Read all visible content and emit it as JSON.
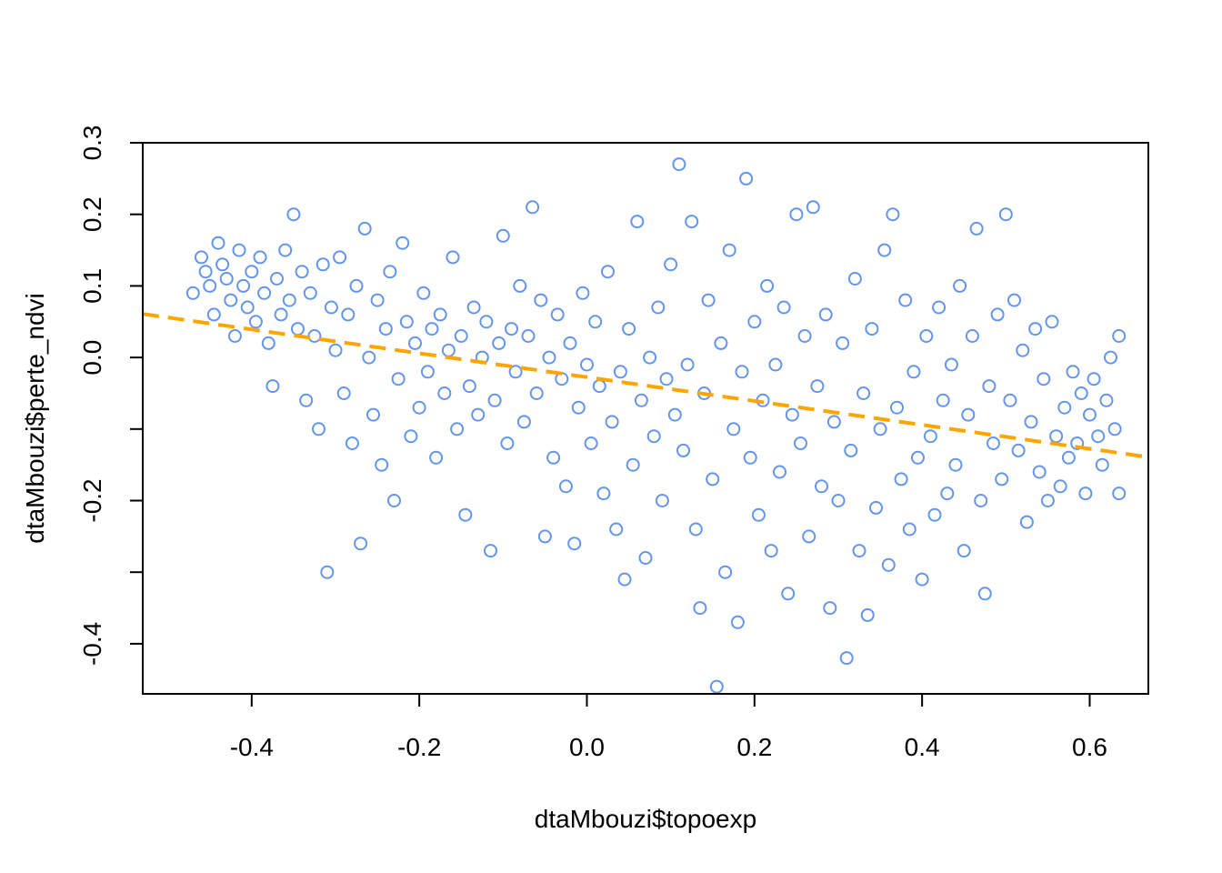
{
  "chart_data": {
    "type": "scatter",
    "title": "",
    "xlabel": "dtaMbouzi$topoexp",
    "ylabel": "dtaMbouzi$perte_ndvi",
    "xlim": [
      -0.53,
      0.67
    ],
    "ylim": [
      -0.47,
      0.3
    ],
    "x_ticks": [
      -0.4,
      -0.2,
      0.0,
      0.2,
      0.4,
      0.6
    ],
    "x_tick_labels": [
      "-0.4",
      "-0.2",
      "0.0",
      "0.2",
      "0.4",
      "0.6"
    ],
    "y_ticks": [
      -0.4,
      -0.3,
      -0.2,
      -0.1,
      0.0,
      0.1,
      0.2,
      0.3
    ],
    "y_tick_labels": [
      "-0.4",
      "",
      "-0.2",
      "",
      "0.0",
      "0.1",
      "0.2",
      "0.3"
    ],
    "grid": false,
    "legend": "none",
    "point_color": "#6495ED",
    "line_color": "#FFA500",
    "regression_line": {
      "style": "dashed",
      "intercept": -0.0275,
      "slope": -0.1667
    },
    "series": [
      {
        "points": [
          [
            -0.47,
            0.09
          ],
          [
            -0.46,
            0.14
          ],
          [
            -0.455,
            0.12
          ],
          [
            -0.45,
            0.1
          ],
          [
            -0.445,
            0.06
          ],
          [
            -0.44,
            0.16
          ],
          [
            -0.435,
            0.13
          ],
          [
            -0.43,
            0.11
          ],
          [
            -0.425,
            0.08
          ],
          [
            -0.42,
            0.03
          ],
          [
            -0.415,
            0.15
          ],
          [
            -0.41,
            0.1
          ],
          [
            -0.405,
            0.07
          ],
          [
            -0.4,
            0.12
          ],
          [
            -0.395,
            0.05
          ],
          [
            -0.39,
            0.14
          ],
          [
            -0.385,
            0.09
          ],
          [
            -0.38,
            0.02
          ],
          [
            -0.375,
            -0.04
          ],
          [
            -0.37,
            0.11
          ],
          [
            -0.365,
            0.06
          ],
          [
            -0.36,
            0.15
          ],
          [
            -0.355,
            0.08
          ],
          [
            -0.35,
            0.2
          ],
          [
            -0.345,
            0.04
          ],
          [
            -0.34,
            0.12
          ],
          [
            -0.335,
            -0.06
          ],
          [
            -0.33,
            0.09
          ],
          [
            -0.325,
            0.03
          ],
          [
            -0.32,
            -0.1
          ],
          [
            -0.315,
            0.13
          ],
          [
            -0.31,
            -0.3
          ],
          [
            -0.305,
            0.07
          ],
          [
            -0.3,
            0.01
          ],
          [
            -0.295,
            0.14
          ],
          [
            -0.29,
            -0.05
          ],
          [
            -0.285,
            0.06
          ],
          [
            -0.28,
            -0.12
          ],
          [
            -0.275,
            0.1
          ],
          [
            -0.27,
            -0.26
          ],
          [
            -0.265,
            0.18
          ],
          [
            -0.26,
            0.0
          ],
          [
            -0.255,
            -0.08
          ],
          [
            -0.25,
            0.08
          ],
          [
            -0.245,
            -0.15
          ],
          [
            -0.24,
            0.04
          ],
          [
            -0.235,
            0.12
          ],
          [
            -0.23,
            -0.2
          ],
          [
            -0.225,
            -0.03
          ],
          [
            -0.22,
            0.16
          ],
          [
            -0.215,
            0.05
          ],
          [
            -0.21,
            -0.11
          ],
          [
            -0.205,
            0.02
          ],
          [
            -0.2,
            -0.07
          ],
          [
            -0.195,
            0.09
          ],
          [
            -0.19,
            -0.02
          ],
          [
            -0.185,
            0.04
          ],
          [
            -0.18,
            -0.14
          ],
          [
            -0.175,
            0.06
          ],
          [
            -0.17,
            -0.05
          ],
          [
            -0.165,
            0.01
          ],
          [
            -0.16,
            0.14
          ],
          [
            -0.155,
            -0.1
          ],
          [
            -0.15,
            0.03
          ],
          [
            -0.145,
            -0.22
          ],
          [
            -0.14,
            -0.04
          ],
          [
            -0.135,
            0.07
          ],
          [
            -0.13,
            -0.08
          ],
          [
            -0.125,
            0.0
          ],
          [
            -0.12,
            0.05
          ],
          [
            -0.115,
            -0.27
          ],
          [
            -0.11,
            -0.06
          ],
          [
            -0.105,
            0.02
          ],
          [
            -0.1,
            0.17
          ],
          [
            -0.095,
            -0.12
          ],
          [
            -0.09,
            0.04
          ],
          [
            -0.085,
            -0.02
          ],
          [
            -0.08,
            0.1
          ],
          [
            -0.075,
            -0.09
          ],
          [
            -0.07,
            0.03
          ],
          [
            -0.065,
            0.21
          ],
          [
            -0.06,
            -0.05
          ],
          [
            -0.055,
            0.08
          ],
          [
            -0.05,
            -0.25
          ],
          [
            -0.045,
            0.0
          ],
          [
            -0.04,
            -0.14
          ],
          [
            -0.035,
            0.06
          ],
          [
            -0.03,
            -0.03
          ],
          [
            -0.025,
            -0.18
          ],
          [
            -0.02,
            0.02
          ],
          [
            -0.015,
            -0.26
          ],
          [
            -0.01,
            -0.07
          ],
          [
            -0.005,
            0.09
          ],
          [
            0.0,
            -0.01
          ],
          [
            0.005,
            -0.12
          ],
          [
            0.01,
            0.05
          ],
          [
            0.015,
            -0.04
          ],
          [
            0.02,
            -0.19
          ],
          [
            0.025,
            0.12
          ],
          [
            0.03,
            -0.09
          ],
          [
            0.035,
            -0.24
          ],
          [
            0.04,
            -0.02
          ],
          [
            0.045,
            -0.31
          ],
          [
            0.05,
            0.04
          ],
          [
            0.055,
            -0.15
          ],
          [
            0.06,
            0.19
          ],
          [
            0.065,
            -0.06
          ],
          [
            0.07,
            -0.28
          ],
          [
            0.075,
            0.0
          ],
          [
            0.08,
            -0.11
          ],
          [
            0.085,
            0.07
          ],
          [
            0.09,
            -0.2
          ],
          [
            0.095,
            -0.03
          ],
          [
            0.1,
            0.13
          ],
          [
            0.105,
            -0.08
          ],
          [
            0.11,
            0.27
          ],
          [
            0.115,
            -0.13
          ],
          [
            0.12,
            -0.01
          ],
          [
            0.125,
            0.19
          ],
          [
            0.13,
            -0.24
          ],
          [
            0.135,
            -0.35
          ],
          [
            0.14,
            -0.05
          ],
          [
            0.145,
            0.08
          ],
          [
            0.15,
            -0.17
          ],
          [
            0.155,
            -0.46
          ],
          [
            0.16,
            0.02
          ],
          [
            0.165,
            -0.3
          ],
          [
            0.17,
            0.15
          ],
          [
            0.175,
            -0.1
          ],
          [
            0.18,
            -0.37
          ],
          [
            0.185,
            -0.02
          ],
          [
            0.19,
            0.25
          ],
          [
            0.195,
            -0.14
          ],
          [
            0.2,
            0.05
          ],
          [
            0.205,
            -0.22
          ],
          [
            0.21,
            -0.06
          ],
          [
            0.215,
            0.1
          ],
          [
            0.22,
            -0.27
          ],
          [
            0.225,
            -0.01
          ],
          [
            0.23,
            -0.16
          ],
          [
            0.235,
            0.07
          ],
          [
            0.24,
            -0.33
          ],
          [
            0.245,
            -0.08
          ],
          [
            0.25,
            0.2
          ],
          [
            0.255,
            -0.12
          ],
          [
            0.26,
            0.03
          ],
          [
            0.265,
            -0.25
          ],
          [
            0.27,
            0.21
          ],
          [
            0.275,
            -0.04
          ],
          [
            0.28,
            -0.18
          ],
          [
            0.285,
            0.06
          ],
          [
            0.29,
            -0.35
          ],
          [
            0.295,
            -0.09
          ],
          [
            0.3,
            -0.2
          ],
          [
            0.305,
            0.02
          ],
          [
            0.31,
            -0.42
          ],
          [
            0.315,
            -0.13
          ],
          [
            0.32,
            0.11
          ],
          [
            0.325,
            -0.27
          ],
          [
            0.33,
            -0.05
          ],
          [
            0.335,
            -0.36
          ],
          [
            0.34,
            0.04
          ],
          [
            0.345,
            -0.21
          ],
          [
            0.35,
            -0.1
          ],
          [
            0.355,
            0.15
          ],
          [
            0.36,
            -0.29
          ],
          [
            0.365,
            0.2
          ],
          [
            0.37,
            -0.07
          ],
          [
            0.375,
            -0.17
          ],
          [
            0.38,
            0.08
          ],
          [
            0.385,
            -0.24
          ],
          [
            0.39,
            -0.02
          ],
          [
            0.395,
            -0.14
          ],
          [
            0.4,
            -0.31
          ],
          [
            0.405,
            0.03
          ],
          [
            0.41,
            -0.11
          ],
          [
            0.415,
            -0.22
          ],
          [
            0.42,
            0.07
          ],
          [
            0.425,
            -0.06
          ],
          [
            0.43,
            -0.19
          ],
          [
            0.435,
            -0.01
          ],
          [
            0.44,
            -0.15
          ],
          [
            0.445,
            0.1
          ],
          [
            0.45,
            -0.27
          ],
          [
            0.455,
            -0.08
          ],
          [
            0.46,
            0.03
          ],
          [
            0.465,
            0.18
          ],
          [
            0.47,
            -0.2
          ],
          [
            0.475,
            -0.33
          ],
          [
            0.48,
            -0.04
          ],
          [
            0.485,
            -0.12
          ],
          [
            0.49,
            0.06
          ],
          [
            0.495,
            -0.17
          ],
          [
            0.5,
            0.2
          ],
          [
            0.505,
            -0.06
          ],
          [
            0.51,
            0.08
          ],
          [
            0.515,
            -0.13
          ],
          [
            0.52,
            0.01
          ],
          [
            0.525,
            -0.23
          ],
          [
            0.53,
            -0.09
          ],
          [
            0.535,
            0.04
          ],
          [
            0.54,
            -0.16
          ],
          [
            0.545,
            -0.03
          ],
          [
            0.55,
            -0.2
          ],
          [
            0.555,
            0.05
          ],
          [
            0.56,
            -0.11
          ],
          [
            0.565,
            -0.18
          ],
          [
            0.57,
            -0.07
          ],
          [
            0.575,
            -0.14
          ],
          [
            0.58,
            -0.02
          ],
          [
            0.585,
            -0.12
          ],
          [
            0.59,
            -0.05
          ],
          [
            0.595,
            -0.19
          ],
          [
            0.6,
            -0.08
          ],
          [
            0.605,
            -0.03
          ],
          [
            0.61,
            -0.11
          ],
          [
            0.615,
            -0.15
          ],
          [
            0.62,
            -0.06
          ],
          [
            0.625,
            0.0
          ],
          [
            0.63,
            -0.1
          ],
          [
            0.635,
            0.03
          ],
          [
            0.635,
            -0.19
          ]
        ]
      }
    ]
  }
}
